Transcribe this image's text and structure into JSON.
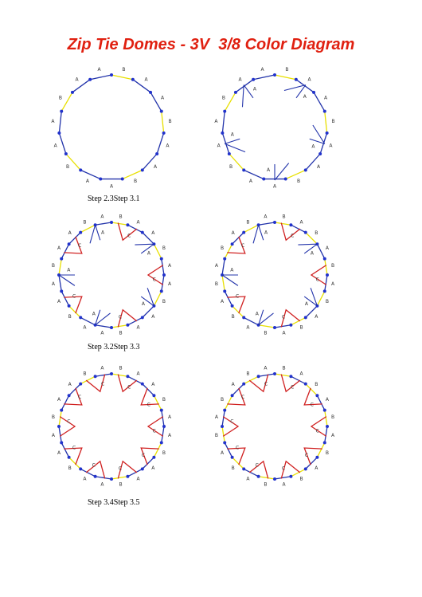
{
  "header": {
    "title": "Zip Tie Domes - 3V  3/8 Color Diagram"
  },
  "captions": [
    "Step 2.3Step 3.1",
    "Step 3.2Step 3.3",
    "Step 3.4Step 3.5"
  ],
  "diagrams": [
    {
      "outer": [
        "B",
        "A",
        "A",
        "B",
        "A",
        "A",
        "B",
        "A",
        "A",
        "B",
        "A",
        "A",
        "B",
        "A",
        "A"
      ],
      "inner": []
    },
    {
      "outer": [
        "B",
        "A",
        "A",
        "B",
        "A",
        "A",
        "B",
        "A",
        "A",
        "B",
        "A",
        "A",
        "B",
        "A",
        "A"
      ],
      "inner": [
        "A",
        "A",
        "A",
        "A",
        "A"
      ]
    },
    {
      "outer": [
        "B",
        "A",
        "A",
        "B",
        "A",
        "A",
        "B",
        "A",
        "A",
        "B",
        "A",
        "A",
        "B",
        "A",
        "A",
        "B",
        "A",
        "A",
        "B",
        "A"
      ],
      "inner": [
        "C",
        "A",
        "C",
        "A",
        "C",
        "A",
        "C",
        "A",
        "C",
        "A"
      ]
    },
    {
      "outer": [
        "B",
        "A",
        "B",
        "A",
        "B",
        "A",
        "B",
        "A",
        "B",
        "A",
        "B",
        "A",
        "B",
        "A",
        "B",
        "A",
        "B",
        "A",
        "B",
        "A"
      ],
      "inner": [
        "C",
        "A",
        "C",
        "A",
        "C",
        "A",
        "C",
        "A",
        "C",
        "A"
      ]
    },
    {
      "outer": [
        "B",
        "A",
        "A",
        "B",
        "A",
        "A",
        "B",
        "A",
        "A",
        "B",
        "A",
        "A",
        "B",
        "A",
        "A",
        "B",
        "A",
        "A",
        "B",
        "A"
      ],
      "inner": [
        "C",
        "C",
        "C",
        "C",
        "C",
        "C",
        "C",
        "C",
        "C",
        "C"
      ]
    },
    {
      "outer": [
        "B",
        "A",
        "B",
        "A",
        "B",
        "A",
        "B",
        "A",
        "B",
        "A",
        "B",
        "A",
        "B",
        "A",
        "B",
        "A",
        "B",
        "A",
        "B",
        "A"
      ],
      "inner": [
        "C",
        "C",
        "C",
        "C",
        "C",
        "C",
        "C",
        "C",
        "C",
        "C"
      ]
    }
  ]
}
